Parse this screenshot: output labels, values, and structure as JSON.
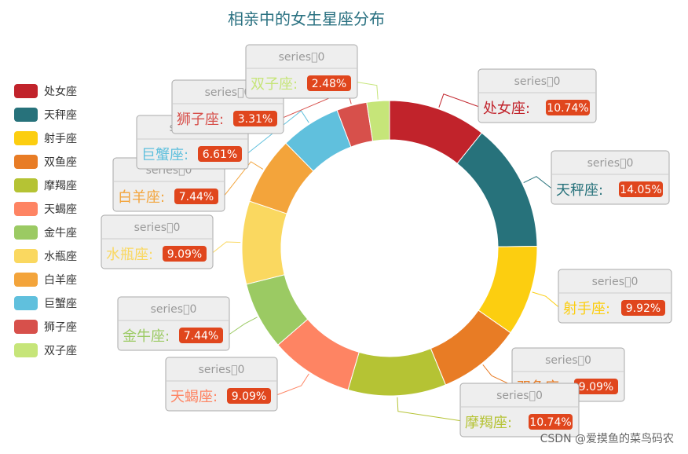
{
  "chart_data": {
    "type": "pie",
    "title": "相亲中的女生星座分布",
    "series_label": "series􀀀0",
    "slices": [
      {
        "name": "处女座",
        "value": 10.74,
        "label": "10.74%",
        "color": "#c1232b"
      },
      {
        "name": "天秤座",
        "value": 14.05,
        "label": "14.05%",
        "color": "#27727b"
      },
      {
        "name": "射手座",
        "value": 9.92,
        "label": "9.92%",
        "color": "#fcce10"
      },
      {
        "name": "双鱼座",
        "value": 9.09,
        "label": "9.09%",
        "color": "#e87c25"
      },
      {
        "name": "摩羯座",
        "value": 10.74,
        "label": "10.74%",
        "color": "#b5c334"
      },
      {
        "name": "天蝎座",
        "value": 9.09,
        "label": "9.09%",
        "color": "#fe8463"
      },
      {
        "name": "金牛座",
        "value": 7.44,
        "label": "7.44%",
        "color": "#9bca63"
      },
      {
        "name": "水瓶座",
        "value": 9.09,
        "label": "9.09%",
        "color": "#fad860"
      },
      {
        "name": "白羊座",
        "value": 7.44,
        "label": "7.44%",
        "color": "#f3a43b"
      },
      {
        "name": "巨蟹座",
        "value": 6.61,
        "label": "6.61%",
        "color": "#60c0dd"
      },
      {
        "name": "狮子座",
        "value": 3.31,
        "label": "3.31%",
        "color": "#d7504b"
      },
      {
        "name": "双子座",
        "value": 2.48,
        "label": "2.48%",
        "color": "#c6e579"
      }
    ],
    "legend_position": "left"
  },
  "watermark": "CSDN @爱摸鱼的菜鸟码农"
}
